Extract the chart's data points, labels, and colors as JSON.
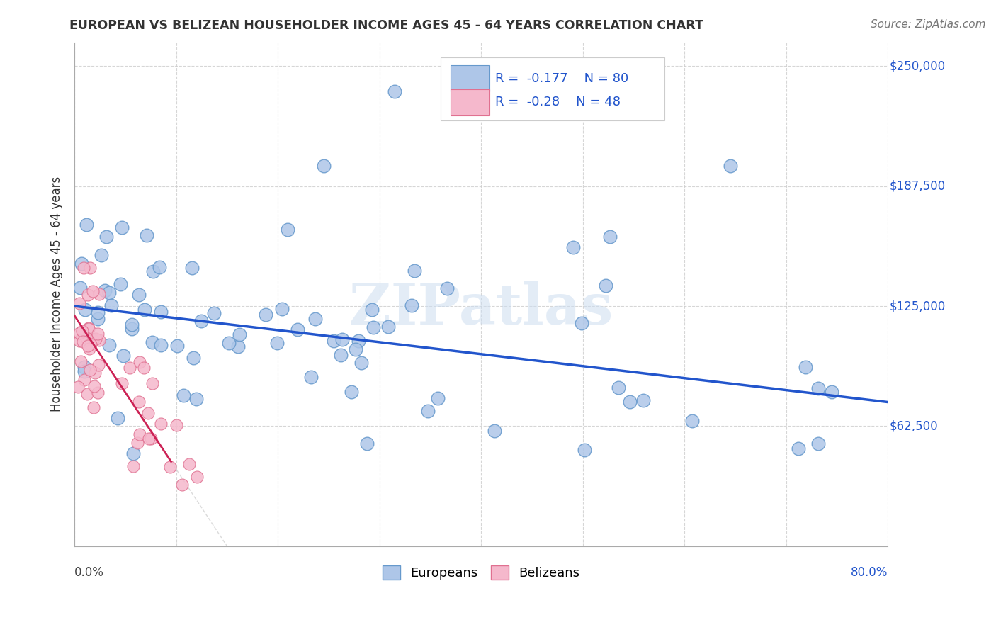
{
  "title": "EUROPEAN VS BELIZEAN HOUSEHOLDER INCOME AGES 45 - 64 YEARS CORRELATION CHART",
  "source": "Source: ZipAtlas.com",
  "ylabel": "Householder Income Ages 45 - 64 years",
  "xlim": [
    0.0,
    0.8
  ],
  "ylim": [
    0,
    262500
  ],
  "yticks": [
    0,
    62500,
    125000,
    187500,
    250000
  ],
  "xticks": [
    0.0,
    0.1,
    0.2,
    0.3,
    0.4,
    0.5,
    0.6,
    0.7,
    0.8
  ],
  "european_color": "#aec6e8",
  "belizean_color": "#f5b8cc",
  "european_edge_color": "#6699cc",
  "belizean_edge_color": "#e07090",
  "trend_blue": "#2255cc",
  "trend_pink": "#cc2255",
  "r_european": -0.177,
  "n_european": 80,
  "r_belizean": -0.28,
  "n_belizean": 48,
  "watermark_text": "ZIPatlas",
  "background_color": "#ffffff",
  "eu_intercept": 125000,
  "eu_slope": -62500,
  "be_intercept": 120000,
  "be_slope": -800000,
  "point_size": 180,
  "be_point_size": 150
}
